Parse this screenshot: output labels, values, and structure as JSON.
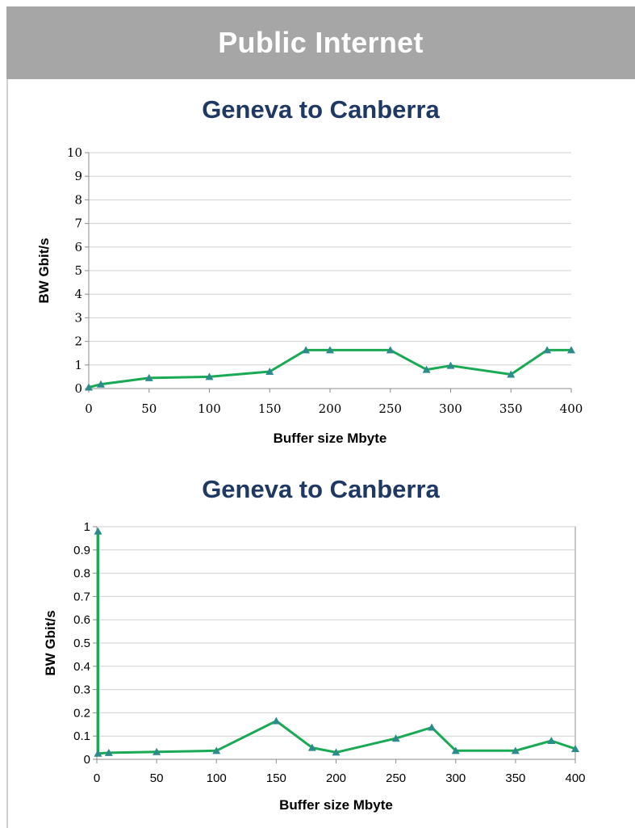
{
  "header": {
    "title": "Public Internet"
  },
  "colors": {
    "header_bg": "#a6a6a6",
    "title_color": "#1f3864",
    "series_color": "#1aaa55",
    "marker_color": "#2e8b8b",
    "grid_color": "#d0d0d0"
  },
  "chart_data": [
    {
      "type": "line",
      "title": "Geneva to Canberra",
      "xlabel": "Buffer size Mbyte",
      "ylabel": "BW Gbit/s",
      "xlim": [
        0,
        400
      ],
      "ylim": [
        0,
        10
      ],
      "xticks": [
        0,
        50,
        100,
        150,
        200,
        250,
        300,
        350,
        400
      ],
      "yticks": [
        0,
        1,
        2,
        3,
        4,
        5,
        6,
        7,
        8,
        9,
        10
      ],
      "ytick_labels": [
        "0",
        "1",
        "2",
        "3",
        "4",
        "5",
        "6",
        "7",
        "8",
        "9",
        "10"
      ],
      "grid": true,
      "series": [
        {
          "x": [
            0,
            10,
            50,
            100,
            150,
            180,
            200,
            250,
            280,
            300,
            350,
            380,
            400
          ],
          "y": [
            0.05,
            0.18,
            0.45,
            0.5,
            0.72,
            1.63,
            1.63,
            1.63,
            0.8,
            0.97,
            0.6,
            1.63,
            1.63
          ]
        }
      ]
    },
    {
      "type": "line",
      "title": "Geneva to Canberra",
      "xlabel": "Buffer size Mbyte",
      "ylabel": "BW Gbit/s",
      "xlim": [
        0,
        400
      ],
      "ylim": [
        0,
        1
      ],
      "xticks": [
        0,
        50,
        100,
        150,
        200,
        250,
        300,
        350,
        400
      ],
      "yticks": [
        0,
        0.1,
        0.2,
        0.3,
        0.4,
        0.5,
        0.6,
        0.7,
        0.8,
        0.9,
        1
      ],
      "ytick_labels": [
        "0",
        "0.1",
        "0.2",
        "0.3",
        "0.4",
        "0.5",
        "0.6",
        "0.7",
        "0.8",
        "0.9",
        "1"
      ],
      "grid": true,
      "series": [
        {
          "x": [
            1,
            1,
            10,
            50,
            100,
            150,
            180,
            200,
            250,
            280,
            300,
            350,
            380,
            400
          ],
          "y": [
            0.98,
            0.025,
            0.028,
            0.032,
            0.037,
            0.165,
            0.05,
            0.03,
            0.09,
            0.137,
            0.037,
            0.037,
            0.08,
            0.045
          ]
        }
      ]
    }
  ]
}
